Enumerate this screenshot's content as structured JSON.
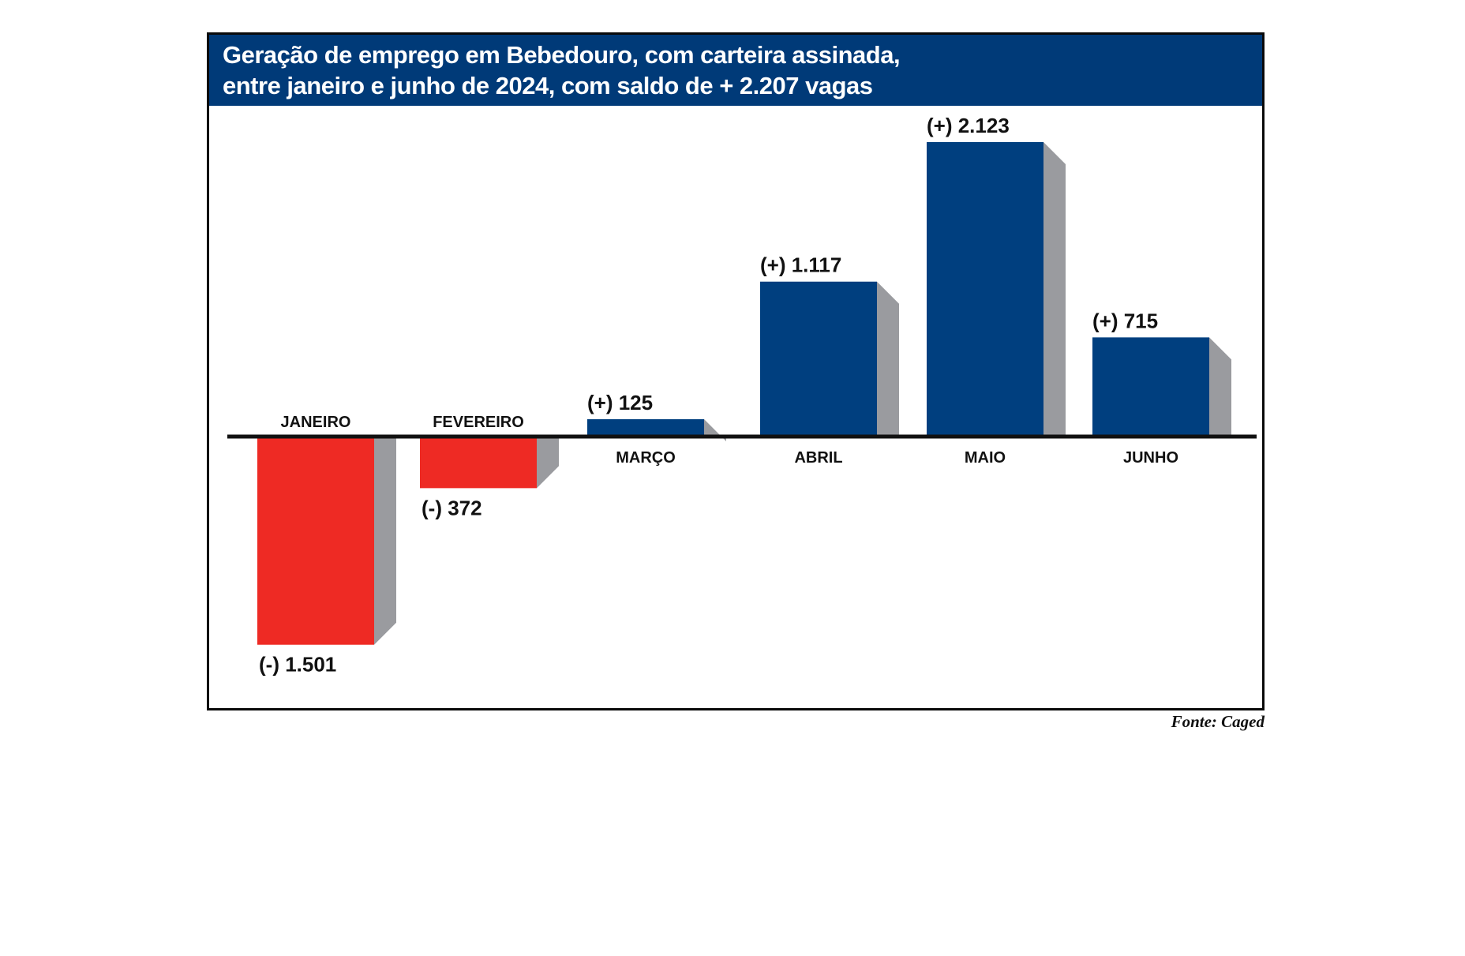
{
  "title_lines": [
    "Geração de emprego em Bebedouro, com carteira assinada,",
    "entre janeiro e junho de 2024, com saldo de + 2.207 vagas"
  ],
  "source": "Fonte: Caged",
  "colors": {
    "positive": "#003f7f",
    "negative": "#ee2a24",
    "side": "#9a9b9f",
    "title_bg": "#003a78",
    "axis": "#111111"
  },
  "chart_data": {
    "type": "bar",
    "title": "Geração de emprego em Bebedouro, com carteira assinada, entre janeiro e junho de 2024, com saldo de + 2.207 vagas",
    "categories": [
      "JANEIRO",
      "FEVEREIRO",
      "MARÇO",
      "ABRIL",
      "MAIO",
      "JUNHO"
    ],
    "values": [
      -1501,
      -372,
      125,
      1117,
      2123,
      715
    ],
    "value_labels": [
      "(-) 1.501",
      "(-) 372",
      "(+) 125",
      "(+) 1.117",
      "(+) 2.123",
      "(+) 715"
    ],
    "xlabel": "",
    "ylabel": "",
    "grid": false,
    "legend": "none"
  }
}
